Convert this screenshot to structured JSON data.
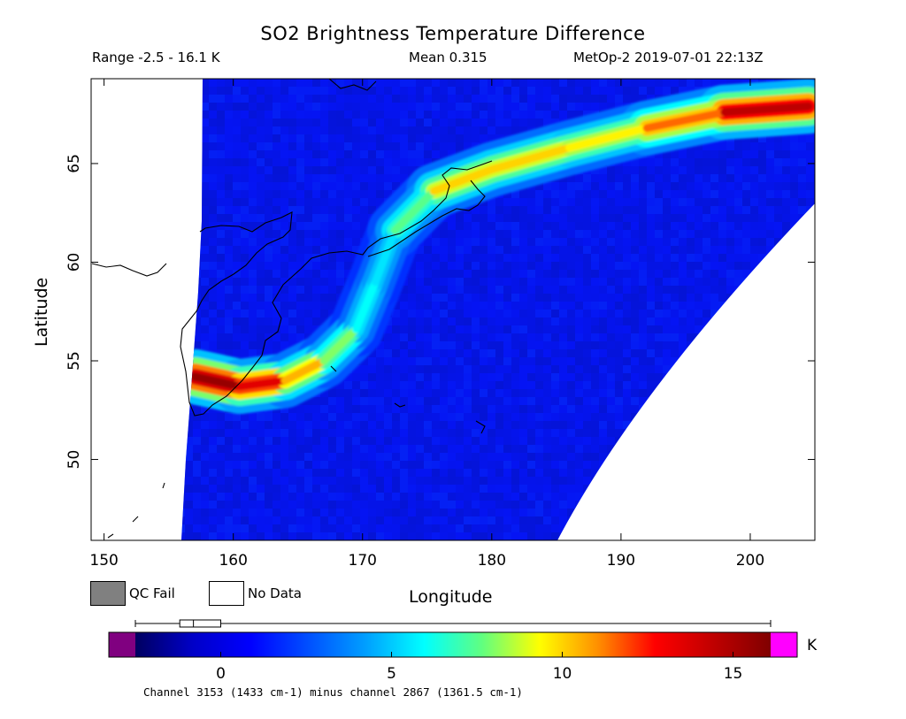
{
  "header": {
    "title": "SO2 Brightness Temperature Difference",
    "range": "Range -2.5 - 16.1 K",
    "mean": "Mean 0.315",
    "satellite_time": "MetOp-2 2019-07-01 22:13Z"
  },
  "legend": {
    "qc_fail": "QC Fail",
    "no_data": "No Data",
    "qc_fail_color": "#808080",
    "no_data_color": "#ffffff"
  },
  "colorbar": {
    "unit": "K",
    "caption": "Channel 3153 (1433 cm-1) minus channel 2867 (1361.5 cm-1)",
    "ticks": [
      0,
      5,
      10,
      15
    ],
    "range": [
      -2.5,
      16.1
    ],
    "under_color": "#800080",
    "over_color": "#ff00ff",
    "stops": [
      "#000060",
      "#0000c8",
      "#0000ff",
      "#0050ff",
      "#00a0ff",
      "#00ffff",
      "#60ff80",
      "#ffff00",
      "#ff9000",
      "#ff0000",
      "#c00000",
      "#800000"
    ],
    "box_plot": {
      "min": -2.5,
      "q1": -1.2,
      "median": -0.8,
      "q3": 0.0,
      "max": 16.1
    }
  },
  "chart_data": {
    "type": "heatmap",
    "title": "SO2 Brightness Temperature Difference",
    "xlabel": "Longitude",
    "ylabel": "Latitude",
    "xlim": [
      149,
      205
    ],
    "ylim": [
      45.9,
      69.3
    ],
    "xticks": [
      150,
      160,
      170,
      180,
      190,
      200
    ],
    "yticks": [
      50,
      55,
      60,
      65
    ],
    "zlim": [
      -2.5,
      16.1
    ],
    "z_unit": "K",
    "plume_path": [
      {
        "lon": 157.0,
        "lat": 54.2,
        "value": 16.0
      },
      {
        "lon": 160.5,
        "lat": 53.7,
        "value": 15.0
      },
      {
        "lon": 164.0,
        "lat": 54.0,
        "value": 12.0
      },
      {
        "lon": 167.0,
        "lat": 55.0,
        "value": 9.0
      },
      {
        "lon": 169.5,
        "lat": 56.6,
        "value": 7.0
      },
      {
        "lon": 171.0,
        "lat": 59.0,
        "value": 5.0
      },
      {
        "lon": 172.5,
        "lat": 61.6,
        "value": 6.0
      },
      {
        "lon": 175.5,
        "lat": 63.6,
        "value": 9.0
      },
      {
        "lon": 180.0,
        "lat": 64.7,
        "value": 11.0
      },
      {
        "lon": 186.0,
        "lat": 65.8,
        "value": 9.0
      },
      {
        "lon": 192.0,
        "lat": 66.8,
        "value": 10.0
      },
      {
        "lon": 198.0,
        "lat": 67.6,
        "value": 13.0
      },
      {
        "lon": 204.5,
        "lat": 67.9,
        "value": 16.0
      }
    ],
    "background_value": 0.3
  }
}
